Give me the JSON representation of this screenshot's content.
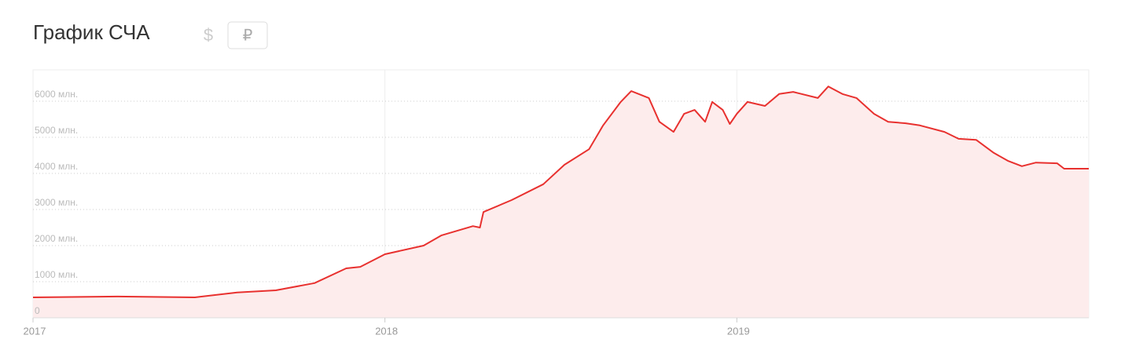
{
  "chart_data": {
    "type": "line",
    "title": "График СЧА",
    "currencies": [
      "$",
      "₽"
    ],
    "x": [
      2017.0,
      2017.24,
      2017.46,
      2017.58,
      2017.69,
      2017.8,
      2017.89,
      2017.93,
      2018.0,
      2018.11,
      2018.16,
      2018.25,
      2018.27,
      2018.28,
      2018.36,
      2018.45,
      2018.51,
      2018.58,
      2018.62,
      2018.67,
      2018.7,
      2018.75,
      2018.78,
      2018.82,
      2018.85,
      2018.88,
      2018.91,
      2018.93,
      2018.96,
      2018.98,
      2019.0,
      2019.03,
      2019.08,
      2019.12,
      2019.16,
      2019.23,
      2019.26,
      2019.3,
      2019.34,
      2019.39,
      2019.43,
      2019.48,
      2019.52,
      2019.59,
      2019.63,
      2019.68,
      2019.73,
      2019.77,
      2019.81,
      2019.85,
      2019.91,
      2019.93,
      2020.0
    ],
    "series": [
      {
        "name": "СЧА",
        "color": "#e8312f",
        "fill": "#fdecec",
        "values": [
          565,
          590,
          565,
          700,
          760,
          960,
          1370,
          1410,
          1760,
          2000,
          2280,
          2540,
          2500,
          2930,
          3260,
          3700,
          4240,
          4670,
          5330,
          5980,
          6280,
          6090,
          5430,
          5150,
          5650,
          5760,
          5430,
          5980,
          5760,
          5370,
          5650,
          5980,
          5870,
          6200,
          6260,
          6090,
          6410,
          6200,
          6090,
          5650,
          5430,
          5390,
          5330,
          5150,
          4960,
          4930,
          4570,
          4350,
          4200,
          4300,
          4280,
          4130,
          4130
        ]
      }
    ],
    "xlim": [
      2017,
      2020
    ],
    "xticks": [
      2017,
      2018,
      2019
    ],
    "ylim": [
      0,
      6870
    ],
    "yticks": [
      0,
      {
        "value": 1000,
        "label": "1000 млн."
      },
      {
        "value": 2000,
        "label": "2000 млн."
      },
      {
        "value": 3000,
        "label": "3000 млн."
      },
      {
        "value": 4000,
        "label": "4000 млн."
      },
      {
        "value": 5000,
        "label": "5000 млн."
      },
      {
        "value": 6000,
        "label": "6000 млн."
      }
    ],
    "grid": true
  }
}
